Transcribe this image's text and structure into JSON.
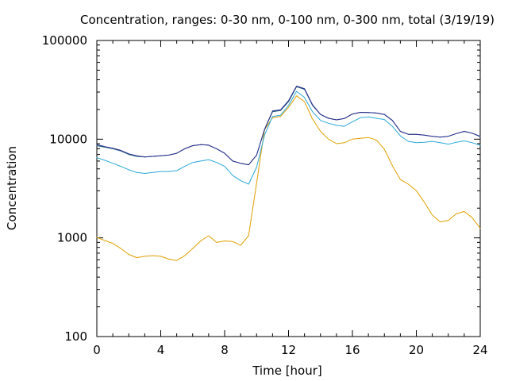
{
  "chart_data": {
    "type": "line",
    "title": "Concentration, ranges: 0-30 nm, 0-100 nm, 0-300 nm, total (3/19/19)",
    "xlabel": "Time [hour]",
    "ylabel": "Concentration",
    "xlim": [
      0,
      24
    ],
    "ylim": [
      100,
      100000
    ],
    "y_scale": "log",
    "x_ticks": [
      0,
      4,
      8,
      12,
      16,
      20,
      24
    ],
    "x_tick_labels": [
      "0",
      "4",
      "8",
      "12",
      "16",
      "20",
      "24"
    ],
    "y_ticks": [
      100,
      1000,
      10000,
      100000
    ],
    "y_tick_labels": [
      "100",
      "1000",
      "10000",
      "100000"
    ],
    "grid": false,
    "legend": "none",
    "series": [
      {
        "color": "#e0a000",
        "x": [
          0,
          0.5,
          1,
          1.5,
          2,
          2.5,
          3,
          3.5,
          4,
          4.5,
          5,
          5.5,
          6,
          6.5,
          7,
          7.5,
          8,
          8.5,
          9,
          9.5,
          10,
          10.5,
          11,
          11.5,
          12,
          12.5,
          13,
          13.5,
          14,
          14.5,
          15,
          15.5,
          16,
          16.5,
          17,
          17.5,
          18,
          18.5,
          19,
          19.5,
          20,
          20.5,
          21,
          21.5,
          22,
          22.5,
          23,
          23.5,
          24
        ],
        "values": [
          1010,
          940,
          880,
          780,
          680,
          630,
          650,
          660,
          650,
          610,
          590,
          660,
          780,
          930,
          1050,
          900,
          930,
          920,
          840,
          1050,
          3600,
          12500,
          16500,
          17000,
          21000,
          27500,
          24000,
          16000,
          12000,
          10000,
          9000,
          9200,
          10000,
          10200,
          10400,
          9800,
          7900,
          5400,
          3900,
          3500,
          3000,
          2300,
          1700,
          1450,
          1500,
          1750,
          1850,
          1600,
          1250
        ]
      },
      {
        "color": "#2aa9d6",
        "x": [
          0,
          0.5,
          1,
          1.5,
          2,
          2.5,
          3,
          3.5,
          4,
          4.5,
          5,
          5.5,
          6,
          6.5,
          7,
          7.5,
          8,
          8.5,
          9,
          9.5,
          10,
          10.5,
          11,
          11.5,
          12,
          12.5,
          13,
          13.5,
          14,
          14.5,
          15,
          15.5,
          16,
          16.5,
          17,
          17.5,
          18,
          18.5,
          19,
          19.5,
          20,
          20.5,
          21,
          21.5,
          22,
          22.5,
          23,
          23.5,
          24
        ],
        "values": [
          6500,
          6100,
          5700,
          5300,
          4900,
          4600,
          4500,
          4600,
          4700,
          4700,
          4800,
          5300,
          5800,
          6000,
          6200,
          5800,
          5300,
          4300,
          3800,
          3500,
          5200,
          11000,
          17000,
          17500,
          22000,
          30500,
          26500,
          19000,
          15500,
          14500,
          13800,
          13500,
          15000,
          16500,
          16800,
          16300,
          15800,
          13500,
          10800,
          9500,
          9200,
          9300,
          9500,
          9200,
          8900,
          9300,
          9600,
          9200,
          8700
        ]
      },
      {
        "color": "#1a5f7a",
        "x": [
          0,
          0.5,
          1,
          1.5,
          2,
          2.5,
          3,
          3.5,
          4,
          4.5,
          5,
          5.5,
          6,
          6.5,
          7,
          7.5,
          8,
          8.5,
          9,
          9.5,
          10,
          10.5,
          11,
          11.5,
          12,
          12.5,
          13,
          13.5,
          14,
          14.5,
          15,
          15.5,
          16,
          16.5,
          17,
          17.5,
          18,
          18.5,
          19,
          19.5,
          20,
          20.5,
          21,
          21.5,
          22,
          22.5,
          23,
          23.5,
          24
        ],
        "values": [
          8600,
          8300,
          8000,
          7600,
          7000,
          6700,
          6600,
          6700,
          6800,
          6900,
          7200,
          8000,
          8600,
          8800,
          8700,
          8000,
          7200,
          6000,
          5700,
          5500,
          6900,
          12500,
          19000,
          19500,
          24000,
          34000,
          32000,
          22000,
          17800,
          16300,
          15700,
          16200,
          18000,
          18700,
          18600,
          18400,
          17800,
          15500,
          12000,
          11200,
          11200,
          11000,
          10700,
          10500,
          10700,
          11400,
          12000,
          11500,
          10600
        ]
      },
      {
        "color": "#2c2c8e",
        "x": [
          0,
          0.5,
          1,
          1.5,
          2,
          2.5,
          3,
          3.5,
          4,
          4.5,
          5,
          5.5,
          6,
          6.5,
          7,
          7.5,
          8,
          8.5,
          9,
          9.5,
          10,
          10.5,
          11,
          11.5,
          12,
          12.5,
          13,
          13.5,
          14,
          14.5,
          15,
          15.5,
          16,
          16.5,
          17,
          17.5,
          18,
          18.5,
          19,
          19.5,
          20,
          20.5,
          21,
          21.5,
          22,
          22.5,
          23,
          23.5,
          24
        ],
        "values": [
          8800,
          8400,
          8100,
          7700,
          7100,
          6800,
          6600,
          6700,
          6800,
          6900,
          7200,
          8000,
          8600,
          8800,
          8700,
          8000,
          7200,
          6000,
          5700,
          5500,
          6900,
          12600,
          19300,
          19800,
          24500,
          34500,
          32500,
          22300,
          17800,
          16300,
          15700,
          16200,
          18000,
          18700,
          18600,
          18400,
          17800,
          15500,
          12000,
          11200,
          11200,
          11000,
          10700,
          10500,
          10700,
          11400,
          12000,
          11500,
          10700
        ]
      }
    ]
  }
}
